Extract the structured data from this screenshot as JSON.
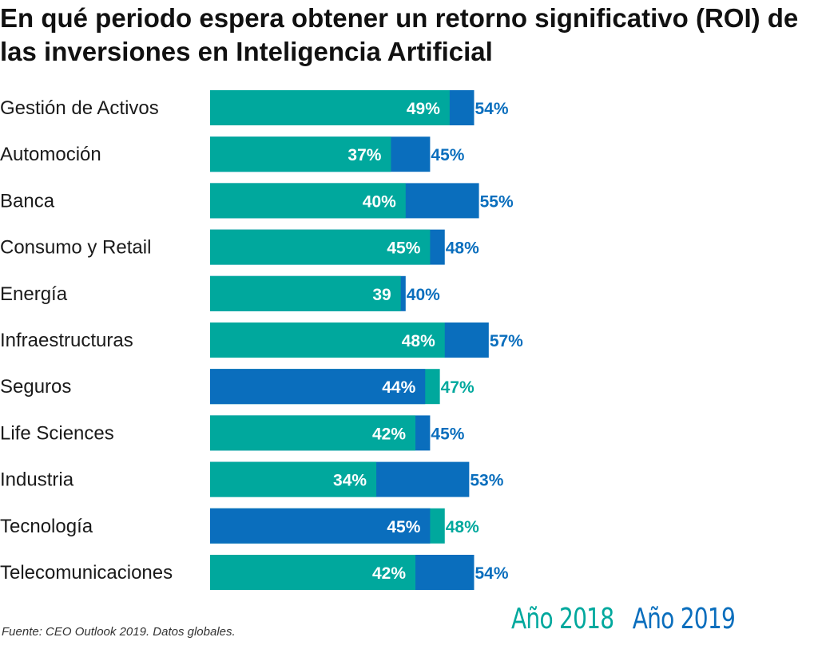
{
  "title": "En qué periodo espera obtener un retorno significativo (ROI) de las inversiones en Inteligencia Artificial",
  "source": "Fuente: CEO Outlook 2019. Datos globales.",
  "legend": {
    "y2018": "Año 2018",
    "y2019": "Año 2019"
  },
  "colors": {
    "y2018": "#00a89d",
    "y2019": "#0a6ebd"
  },
  "chart_data": {
    "type": "bar",
    "orientation": "horizontal",
    "style": "overlapping",
    "title": "En qué periodo espera obtener un retorno significativo (ROI) de las inversiones en Inteligencia Artificial",
    "categories": [
      "Gestión de Activos",
      "Automoción",
      "Banca",
      "Consumo y Retail",
      "Energía",
      "Infraestructuras",
      "Seguros",
      "Life Sciences",
      "Industria",
      "Tecnología",
      "Telecomunicaciones"
    ],
    "series": [
      {
        "name": "Año 2018",
        "values": [
          49,
          37,
          40,
          45,
          39,
          48,
          47,
          42,
          34,
          48,
          42
        ],
        "labels": [
          "49%",
          "37%",
          "40%",
          "45%",
          "39",
          "48%",
          "47%",
          "42%",
          "34%",
          "48%",
          "42%"
        ]
      },
      {
        "name": "Año 2019",
        "values": [
          54,
          45,
          55,
          48,
          40,
          57,
          44,
          45,
          53,
          45,
          54
        ],
        "labels": [
          "54%",
          "45%",
          "55%",
          "48%",
          "40%",
          "57%",
          "44%",
          "45%",
          "53%",
          "45%",
          "54%"
        ]
      }
    ],
    "xlim": [
      0,
      100
    ],
    "legend_position": "bottom-right"
  }
}
